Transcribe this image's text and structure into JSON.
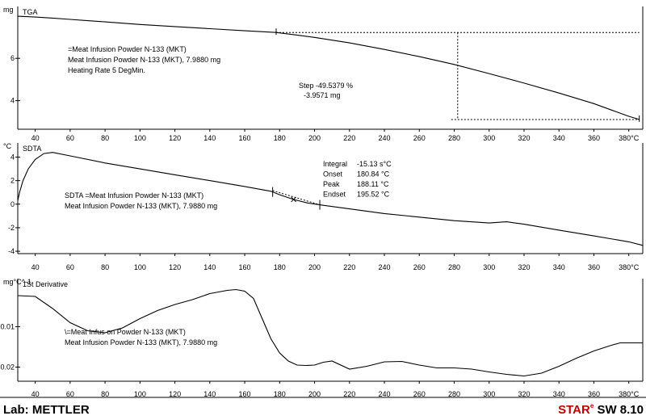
{
  "chart_data": {
    "type": "line",
    "x_ticks": [
      40,
      60,
      80,
      100,
      120,
      140,
      160,
      180,
      200,
      220,
      240,
      260,
      280,
      300,
      320,
      340,
      360,
      "380°C"
    ],
    "panels": [
      {
        "id": "tga",
        "title": "TGA",
        "unit": "mg",
        "y_ticks": [
          4,
          6
        ],
        "xlim": [
          30,
          388
        ],
        "ylim": [
          2.65,
          8.45
        ],
        "series": [
          {
            "x": [
              30,
              40,
              50,
              60,
              70,
              80,
              90,
              100,
              120,
              140,
              160,
              178,
              190,
              200,
              220,
              240,
              260,
              280,
              300,
              320,
              340,
              360,
              370,
              380,
              386
            ],
            "y": [
              7.99,
              7.95,
              7.9,
              7.84,
              7.78,
              7.72,
              7.66,
              7.6,
              7.5,
              7.4,
              7.3,
              7.22,
              7.1,
              6.99,
              6.73,
              6.42,
              6.08,
              5.71,
              5.28,
              4.83,
              4.36,
              3.86,
              3.56,
              3.26,
              3.11
            ]
          }
        ],
        "legend_lines": [
          "=Meat Infusion Powder N-133 (MKT)",
          "Meat Infusion Powder N-133 (MKT), 7.9880 mg",
          "Heating Rate 5 DegMin."
        ],
        "step": {
          "label": "Step",
          "percent": "-49.5379 %",
          "mass": "-3.9571 mg",
          "x_start": 178,
          "x_end": 386,
          "y_start": 7.22,
          "y_end": 3.11,
          "x_mid": 282
        }
      },
      {
        "id": "sdta",
        "title": "SDTA",
        "unit": "°C",
        "y_ticks": [
          4,
          2,
          0,
          -2,
          -4
        ],
        "xlim": [
          30,
          388
        ],
        "ylim": [
          -4.2,
          5.2
        ],
        "series": [
          {
            "x": [
              30,
              31,
              33,
              36,
              40,
              45,
              50,
              60,
              80,
              100,
              120,
              140,
              160,
              175,
              180,
              188,
              196,
              205,
              220,
              240,
              260,
              280,
              300,
              310,
              320,
              340,
              360,
              380,
              388
            ],
            "y": [
              0.3,
              1.0,
              2.0,
              3.0,
              3.8,
              4.3,
              4.4,
              4.1,
              3.5,
              3.0,
              2.5,
              2.0,
              1.5,
              1.1,
              0.8,
              0.4,
              0.1,
              -0.1,
              -0.4,
              -0.8,
              -1.1,
              -1.4,
              -1.6,
              -1.5,
              -1.7,
              -2.2,
              -2.7,
              -3.2,
              -3.5
            ]
          }
        ],
        "legend_lines": [
          "SDTA =Meat Infusion Powder N-133 (MKT)",
          "Meat Infusion Powder N-133 (MKT), 7.9880 mg"
        ],
        "results": [
          {
            "label": "Integral",
            "value": "-15.13 s°C"
          },
          {
            "label": "Onset",
            "value": "180.84 °C"
          },
          {
            "label": "Peak",
            "value": "188.11 °C"
          },
          {
            "label": "Endset",
            "value": "195.52 °C"
          }
        ],
        "markers": [
          176,
          188,
          203
        ]
      },
      {
        "id": "deriv",
        "title": "1St Derivative",
        "unit": "mg°C^-1",
        "y_ticks": [
          -0.01,
          -0.02
        ],
        "xlim": [
          30,
          388
        ],
        "ylim": [
          -0.0235,
          0.0019
        ],
        "series": [
          {
            "x": [
              30,
              40,
              50,
              60,
              70,
              80,
              90,
              100,
              110,
              120,
              130,
              140,
              150,
              155,
              160,
              165,
              170,
              175,
              180,
              185,
              190,
              195,
              200,
              205,
              210,
              220,
              230,
              240,
              250,
              260,
              270,
              280,
              290,
              300,
              310,
              320,
              330,
              340,
              350,
              360,
              370,
              375,
              388
            ],
            "y": [
              -0.0023,
              -0.0025,
              -0.0055,
              -0.009,
              -0.011,
              -0.0115,
              -0.0103,
              -0.008,
              -0.006,
              -0.0045,
              -0.0033,
              -0.0018,
              -0.001,
              -0.0008,
              -0.0012,
              -0.003,
              -0.008,
              -0.013,
              -0.0165,
              -0.0185,
              -0.0195,
              -0.0196,
              -0.0195,
              -0.0188,
              -0.0185,
              -0.0205,
              -0.0198,
              -0.0187,
              -0.0186,
              -0.0195,
              -0.0202,
              -0.0202,
              -0.0205,
              -0.0212,
              -0.0218,
              -0.0222,
              -0.0215,
              -0.0198,
              -0.0178,
              -0.016,
              -0.0146,
              -0.014,
              -0.014
            ]
          }
        ],
        "legend_lines": [
          "\\=Meat Infus on Powder N-133 (MKT)",
          "Meat Infusion Powder N-133 (MKT), 7.9880 mg"
        ]
      }
    ]
  },
  "footer": {
    "lab": "Lab: METTLER",
    "brand_star": "STAR",
    "brand_sup": "e",
    "brand_version": " SW 8.10"
  },
  "colors": {
    "line": "#000000",
    "footer_accent": "#c00000"
  }
}
